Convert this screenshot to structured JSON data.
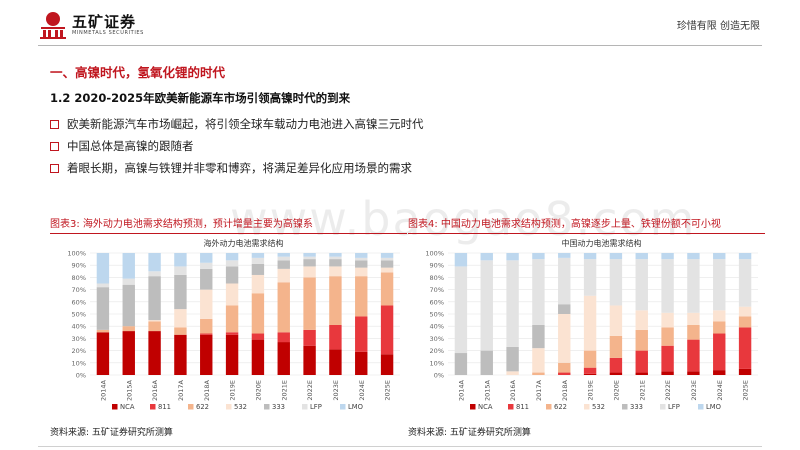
{
  "header": {
    "brand": "五矿证券",
    "brand_sub": "MINMETALS SECURITIES",
    "slogan": "珍惜有限  创造无限"
  },
  "section_title": "一、高镍时代，氢氧化锂的时代",
  "sub_title": "1.2 2020-2025年欧美新能源车市场引领高镍时代的到来",
  "bullets": [
    "欧美新能源汽车市场崛起，将引领全球车载动力电池进入高镍三元时代",
    "中国总体是高镍的跟随者",
    "着眼长期，高镍与铁锂并非零和博弈，将满足差异化应用场景的需求"
  ],
  "watermark": "www.baogao8.com",
  "colors": {
    "accent": "#c0161f",
    "NCA": "#c00000",
    "811": "#e8383d",
    "622": "#f4b48c",
    "532": "#fbe3d2",
    "333": "#bdbdbd",
    "LFP": "#e3e3e3",
    "LMO": "#bdd7ee"
  },
  "chart_data": [
    {
      "type": "bar",
      "stacked": true,
      "caption": "图表3: 海外动力电池需求结构预测，预计增量主要为高镍系",
      "title": "海外动力电池需求结构",
      "source": "资料来源: 五矿证券研究所测算",
      "xlabel": "",
      "ylabel": "",
      "ylim": [
        0,
        100
      ],
      "yticks": [
        "0%",
        "10%",
        "20%",
        "30%",
        "40%",
        "50%",
        "60%",
        "70%",
        "80%",
        "90%",
        "100%"
      ],
      "grid": true,
      "legend_position": "bottom",
      "categories": [
        "2014A",
        "2015A",
        "2016A",
        "2017A",
        "2018A",
        "2019E",
        "2020E",
        "2021E",
        "2022E",
        "2023E",
        "2024E",
        "2025E"
      ],
      "series": [
        {
          "name": "NCA",
          "values": [
            35,
            36,
            36,
            33,
            33,
            33,
            29,
            27,
            24,
            21,
            19,
            17
          ]
        },
        {
          "name": "811",
          "values": [
            0,
            0,
            0,
            0,
            1,
            2,
            5,
            8,
            13,
            20,
            29,
            40
          ]
        },
        {
          "name": "622",
          "values": [
            2,
            4,
            8,
            6,
            12,
            22,
            33,
            41,
            43,
            40,
            33,
            27
          ]
        },
        {
          "name": "532",
          "values": [
            0,
            0,
            1,
            15,
            24,
            18,
            15,
            11,
            9,
            8,
            7,
            4
          ]
        },
        {
          "name": "333",
          "values": [
            35,
            34,
            36,
            28,
            17,
            14,
            9,
            7,
            6,
            6,
            6,
            6
          ]
        },
        {
          "name": "LFP",
          "values": [
            3,
            5,
            4,
            7,
            5,
            5,
            5,
            3,
            2,
            2,
            2,
            2
          ]
        },
        {
          "name": "LMO",
          "values": [
            25,
            21,
            15,
            11,
            8,
            6,
            4,
            3,
            3,
            3,
            4,
            4
          ]
        }
      ]
    },
    {
      "type": "bar",
      "stacked": true,
      "caption": "图表4: 中国动力电池需求结构预测，高镍逐步上量、铁锂份额不可小视",
      "title": "中国动力电池需求结构",
      "source": "资料来源: 五矿证券研究所测算",
      "xlabel": "",
      "ylabel": "",
      "ylim": [
        0,
        100
      ],
      "yticks": [
        "0%",
        "10%",
        "20%",
        "30%",
        "40%",
        "50%",
        "60%",
        "70%",
        "80%",
        "90%",
        "100%"
      ],
      "grid": true,
      "legend_position": "bottom",
      "categories": [
        "2014A",
        "2015A",
        "2016A",
        "2017A",
        "2018A",
        "2019E",
        "2020E",
        "2021E",
        "2022E",
        "2023E",
        "2024E",
        "2025E"
      ],
      "series": [
        {
          "name": "NCA",
          "values": [
            0,
            0,
            0,
            0,
            0,
            1,
            2,
            2,
            3,
            3,
            4,
            5
          ]
        },
        {
          "name": "811",
          "values": [
            0,
            0,
            0,
            0,
            2,
            5,
            12,
            18,
            21,
            26,
            30,
            34
          ]
        },
        {
          "name": "622",
          "values": [
            0,
            0,
            0,
            2,
            8,
            14,
            18,
            17,
            15,
            12,
            10,
            9
          ]
        },
        {
          "name": "532",
          "values": [
            0,
            0,
            3,
            20,
            40,
            45,
            25,
            16,
            12,
            10,
            9,
            8
          ]
        },
        {
          "name": "333",
          "values": [
            18,
            20,
            20,
            19,
            8,
            0,
            0,
            0,
            0,
            0,
            0,
            0
          ]
        },
        {
          "name": "LFP",
          "values": [
            71,
            74,
            71,
            54,
            38,
            30,
            38,
            42,
            44,
            44,
            42,
            39
          ]
        },
        {
          "name": "LMO",
          "values": [
            11,
            6,
            6,
            5,
            4,
            5,
            5,
            5,
            5,
            5,
            5,
            5
          ]
        }
      ]
    }
  ]
}
